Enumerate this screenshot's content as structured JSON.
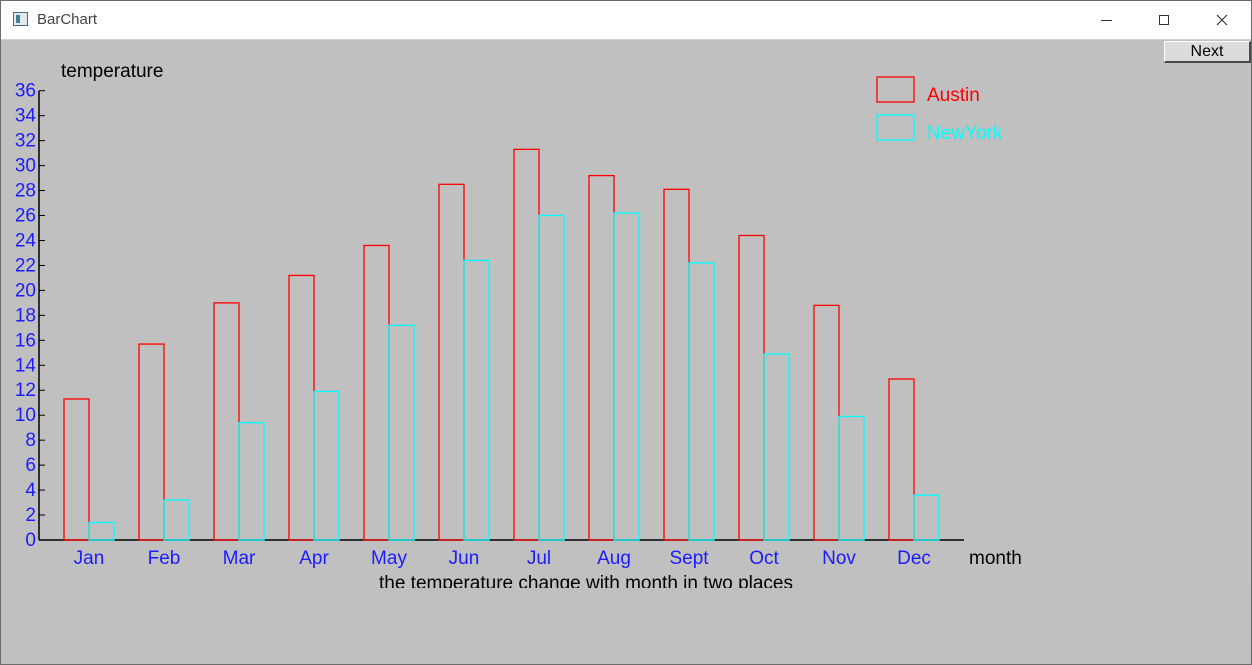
{
  "window": {
    "title": "BarChart",
    "minimize_icon": "minimize-icon",
    "maximize_icon": "maximize-icon",
    "close_icon": "close-icon"
  },
  "toolbar": {
    "next_label": "Next"
  },
  "colors": {
    "background": "#c0c0c0",
    "austin": "#ff0000",
    "newyork": "#00ffff",
    "axis_ticks": "#1c1cff",
    "axis_line": "#000000"
  },
  "chart_data": {
    "type": "bar",
    "title": "the temperature change with month in two places",
    "xlabel": "month",
    "ylabel": "temperature",
    "categories": [
      "Jan",
      "Feb",
      "Mar",
      "Apr",
      "May",
      "Jun",
      "Jul",
      "Aug",
      "Sept",
      "Oct",
      "Nov",
      "Dec"
    ],
    "yticks": [
      0,
      2,
      4,
      6,
      8,
      10,
      12,
      14,
      16,
      18,
      20,
      22,
      24,
      26,
      28,
      30,
      32,
      34,
      36
    ],
    "ylim": [
      0,
      36
    ],
    "grid": false,
    "legend_position": "top-right",
    "series": [
      {
        "name": "Austin",
        "color": "#ff0000",
        "values": [
          11.3,
          15.7,
          19.0,
          21.2,
          23.6,
          28.5,
          31.3,
          29.2,
          28.1,
          24.4,
          18.8,
          12.9
        ]
      },
      {
        "name": "NewYork",
        "color": "#00ffff",
        "values": [
          1.4,
          3.2,
          9.4,
          11.9,
          17.2,
          22.4,
          26.0,
          26.2,
          22.2,
          14.9,
          9.9,
          3.6
        ]
      }
    ]
  }
}
